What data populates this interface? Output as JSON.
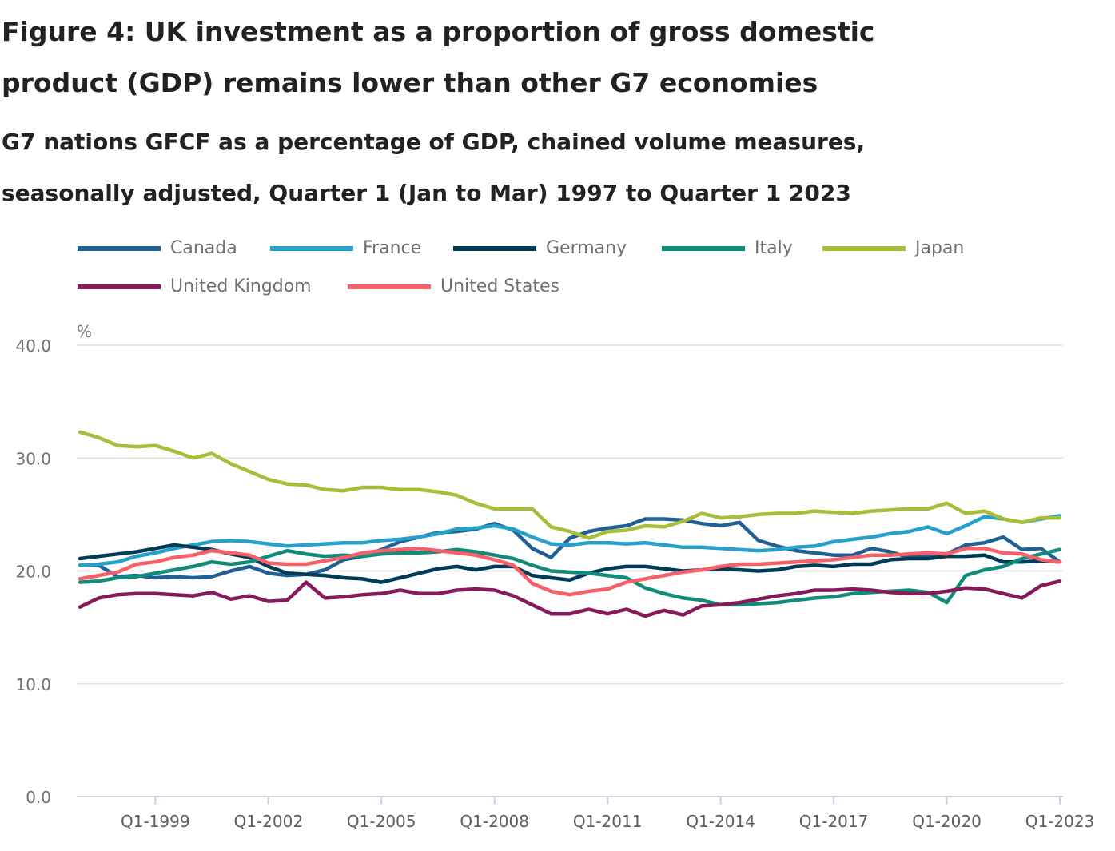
{
  "chart_data": {
    "type": "line",
    "title": "Figure 4: UK investment as a proportion of gross domestic product (GDP) remains lower than other G7 economies",
    "subtitle": "G7 nations GFCF as a percentage of GDP, chained volume measures, seasonally adjusted, Quarter 1 (Jan to Mar) 1997 to Quarter 1 2023",
    "xlabel": "",
    "ylabel": "%",
    "ylim": [
      0,
      40
    ],
    "yticks": [
      "0.0",
      "10.0",
      "20.0",
      "30.0",
      "40.0"
    ],
    "ytick_values": [
      0,
      10,
      20,
      30,
      40
    ],
    "xrange": [
      1997.0,
      2023.0
    ],
    "xticks": [
      "Q1-1999",
      "Q1-2002",
      "Q1-2005",
      "Q1-2008",
      "Q1-2011",
      "Q1-2014",
      "Q1-2017",
      "Q1-2020",
      "Q1-2023"
    ],
    "xtick_values": [
      1999,
      2002,
      2005,
      2008,
      2011,
      2014,
      2017,
      2020,
      2023
    ],
    "x_note": "Values sampled at half-year intervals (Q1 and Q3), from Q1 1997 to Q1 2023",
    "x": [
      1997.0,
      1997.5,
      1998.0,
      1998.5,
      1999.0,
      1999.5,
      2000.0,
      2000.5,
      2001.0,
      2001.5,
      2002.0,
      2002.5,
      2003.0,
      2003.5,
      2004.0,
      2004.5,
      2005.0,
      2005.5,
      2006.0,
      2006.5,
      2007.0,
      2007.5,
      2008.0,
      2008.5,
      2009.0,
      2009.5,
      2010.0,
      2010.5,
      2011.0,
      2011.5,
      2012.0,
      2012.5,
      2013.0,
      2013.5,
      2014.0,
      2014.5,
      2015.0,
      2015.5,
      2016.0,
      2016.5,
      2017.0,
      2017.5,
      2018.0,
      2018.5,
      2019.0,
      2019.5,
      2020.0,
      2020.5,
      2021.0,
      2021.5,
      2022.0,
      2022.5,
      2023.0
    ],
    "grid": true,
    "legend_position": "top-left",
    "series": [
      {
        "name": "Canada",
        "color": "#206095",
        "values": [
          20.5,
          20.5,
          19.5,
          19.6,
          19.4,
          19.5,
          19.4,
          19.5,
          20.0,
          20.4,
          19.8,
          19.6,
          19.7,
          20.1,
          21.0,
          21.3,
          21.9,
          22.6,
          23.0,
          23.4,
          23.5,
          23.7,
          24.2,
          23.6,
          22.0,
          21.2,
          22.9,
          23.5,
          23.8,
          24.0,
          24.6,
          24.6,
          24.5,
          24.2,
          24.0,
          24.3,
          22.7,
          22.2,
          21.8,
          21.6,
          21.4,
          21.4,
          22.0,
          21.7,
          21.2,
          21.4,
          21.5,
          22.3,
          22.5,
          23.0,
          21.9,
          22.0,
          20.8
        ]
      },
      {
        "name": "France",
        "color": "#27a0cc",
        "values": [
          20.5,
          20.6,
          20.8,
          21.3,
          21.6,
          22.0,
          22.3,
          22.6,
          22.7,
          22.6,
          22.4,
          22.2,
          22.3,
          22.4,
          22.5,
          22.5,
          22.7,
          22.8,
          23.0,
          23.3,
          23.7,
          23.8,
          24.0,
          23.7,
          23.0,
          22.4,
          22.3,
          22.5,
          22.5,
          22.4,
          22.5,
          22.3,
          22.1,
          22.1,
          22.0,
          21.9,
          21.8,
          21.9,
          22.1,
          22.2,
          22.6,
          22.8,
          23.0,
          23.3,
          23.5,
          23.9,
          23.3,
          24.0,
          24.8,
          24.6,
          24.3,
          24.6,
          24.9
        ]
      },
      {
        "name": "Germany",
        "color": "#003c57",
        "values": [
          21.1,
          21.3,
          21.5,
          21.7,
          22.0,
          22.3,
          22.1,
          21.9,
          21.5,
          21.2,
          20.4,
          19.8,
          19.7,
          19.6,
          19.4,
          19.3,
          19.0,
          19.4,
          19.8,
          20.2,
          20.4,
          20.1,
          20.4,
          20.4,
          19.6,
          19.4,
          19.2,
          19.8,
          20.2,
          20.4,
          20.4,
          20.2,
          20.0,
          20.1,
          20.2,
          20.1,
          20.0,
          20.1,
          20.4,
          20.5,
          20.4,
          20.6,
          20.6,
          21.0,
          21.1,
          21.1,
          21.3,
          21.3,
          21.4,
          20.8,
          20.8,
          20.9,
          20.8
        ]
      },
      {
        "name": "Italy",
        "color": "#118c7b",
        "values": [
          19.0,
          19.1,
          19.4,
          19.5,
          19.8,
          20.1,
          20.4,
          20.8,
          20.6,
          20.8,
          21.3,
          21.8,
          21.5,
          21.3,
          21.4,
          21.3,
          21.5,
          21.6,
          21.6,
          21.7,
          21.9,
          21.7,
          21.4,
          21.1,
          20.5,
          20.0,
          19.9,
          19.8,
          19.6,
          19.4,
          18.5,
          18.0,
          17.6,
          17.4,
          17.0,
          17.0,
          17.1,
          17.2,
          17.4,
          17.6,
          17.7,
          18.0,
          18.1,
          18.2,
          18.3,
          18.1,
          17.2,
          19.6,
          20.1,
          20.4,
          21.1,
          21.5,
          21.9
        ]
      },
      {
        "name": "Japan",
        "color": "#a8bd3a",
        "values": [
          32.3,
          31.8,
          31.1,
          31.0,
          31.1,
          30.6,
          30.0,
          30.4,
          29.5,
          28.8,
          28.1,
          27.7,
          27.6,
          27.2,
          27.1,
          27.4,
          27.4,
          27.2,
          27.2,
          27.0,
          26.7,
          26.0,
          25.5,
          25.5,
          25.5,
          23.9,
          23.5,
          22.9,
          23.5,
          23.6,
          24.0,
          23.9,
          24.4,
          25.1,
          24.7,
          24.8,
          25.0,
          25.1,
          25.1,
          25.3,
          25.2,
          25.1,
          25.3,
          25.4,
          25.5,
          25.5,
          26.0,
          25.1,
          25.3,
          24.6,
          24.3,
          24.7,
          24.7
        ]
      },
      {
        "name": "United Kingdom",
        "color": "#871a5b",
        "values": [
          16.8,
          17.6,
          17.9,
          18.0,
          18.0,
          17.9,
          17.8,
          18.1,
          17.5,
          17.8,
          17.3,
          17.4,
          19.0,
          17.6,
          17.7,
          17.9,
          18.0,
          18.3,
          18.0,
          18.0,
          18.3,
          18.4,
          18.3,
          17.8,
          17.0,
          16.2,
          16.2,
          16.6,
          16.2,
          16.6,
          16.0,
          16.5,
          16.1,
          16.9,
          17.0,
          17.2,
          17.5,
          17.8,
          18.0,
          18.3,
          18.3,
          18.4,
          18.3,
          18.1,
          18.0,
          18.0,
          18.2,
          18.5,
          18.4,
          18.0,
          17.6,
          18.7,
          19.1
        ]
      },
      {
        "name": "United States",
        "color": "#f66068",
        "values": [
          19.3,
          19.6,
          19.9,
          20.6,
          20.8,
          21.2,
          21.4,
          21.8,
          21.6,
          21.4,
          20.7,
          20.6,
          20.6,
          20.9,
          21.2,
          21.6,
          21.8,
          21.9,
          22.0,
          21.8,
          21.6,
          21.4,
          21.0,
          20.5,
          18.9,
          18.2,
          17.9,
          18.2,
          18.4,
          19.0,
          19.3,
          19.6,
          19.9,
          20.1,
          20.4,
          20.6,
          20.6,
          20.7,
          20.8,
          20.9,
          21.0,
          21.2,
          21.4,
          21.4,
          21.5,
          21.6,
          21.5,
          22.0,
          22.0,
          21.6,
          21.5,
          21.0,
          20.8
        ]
      }
    ]
  }
}
